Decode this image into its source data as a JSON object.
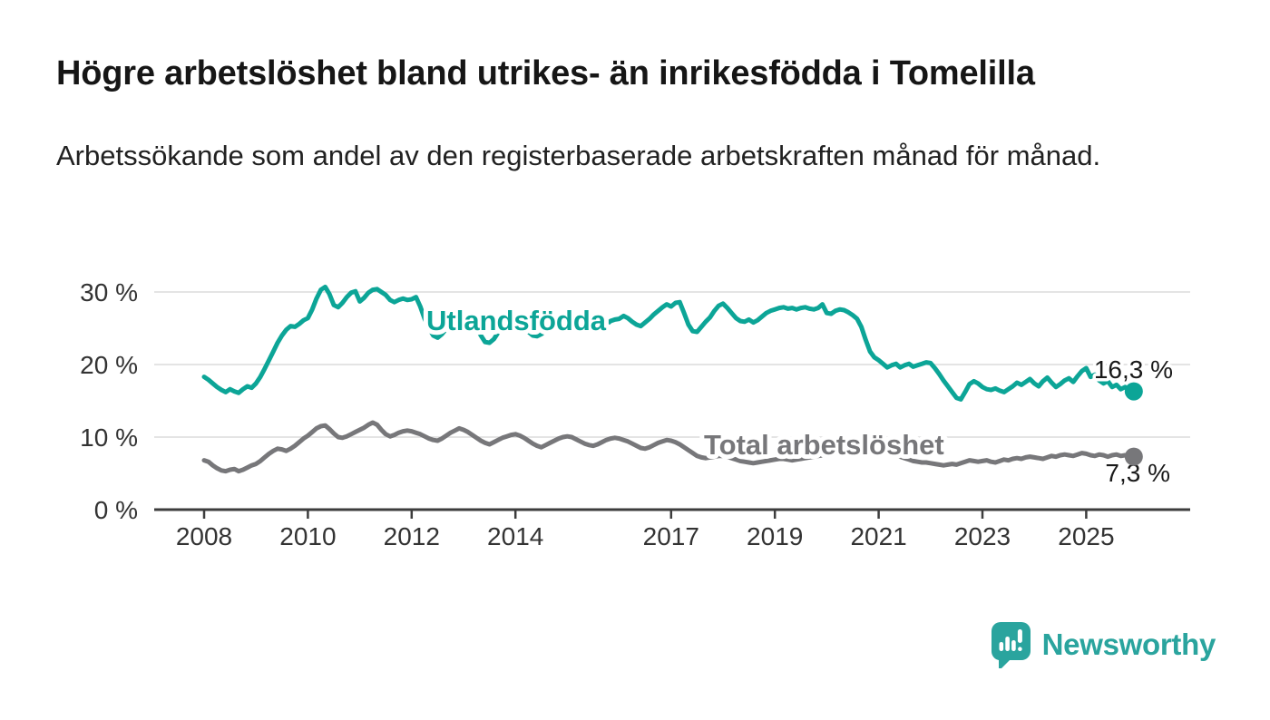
{
  "title": "Högre arbetslöshet bland utrikes- än inrikesfödda i Tomelilla",
  "subtitle": "Arbetssökande som andel av den registerbaserade arbetskraften månad för månad.",
  "branding": {
    "name": "Newsworthy",
    "icon": "speech-bubble-bar-chart-icon",
    "color": "#2AA49E"
  },
  "colors": {
    "foreign_born_line": "#0CA597",
    "total_line": "#77777A",
    "grid": "#DBDBDB",
    "axis": "#3D3D3D",
    "tick_text": "#333333",
    "value_text": "#1A1A1A",
    "background": "#FFFFFF"
  },
  "chart_data": {
    "type": "line",
    "unit": "%",
    "frequency": "monthly",
    "x_start": "2008-01",
    "x_end": "2025-12",
    "ylim": [
      0,
      32
    ],
    "grid": "horizontal",
    "y_ticks": [
      {
        "value": 0,
        "label": "0 %"
      },
      {
        "value": 10,
        "label": "10 %"
      },
      {
        "value": 20,
        "label": "20 %"
      },
      {
        "value": 30,
        "label": "30 %"
      }
    ],
    "x_ticks": [
      {
        "year": 2008,
        "label": "2008"
      },
      {
        "year": 2010,
        "label": "2010"
      },
      {
        "year": 2012,
        "label": "2012"
      },
      {
        "year": 2014,
        "label": "2014"
      },
      {
        "year": 2017,
        "label": "2017"
      },
      {
        "year": 2019,
        "label": "2019"
      },
      {
        "year": 2021,
        "label": "2021"
      },
      {
        "year": 2023,
        "label": "2023"
      },
      {
        "year": 2025,
        "label": "2025"
      }
    ],
    "series": [
      {
        "name": "Utlandsfödda",
        "color": "#0CA597",
        "end_label": "16,3 %",
        "end_value": 16.3,
        "values": [
          18.3,
          17.9,
          17.4,
          16.9,
          16.5,
          16.2,
          16.6,
          16.3,
          16.1,
          16.6,
          17.0,
          16.8,
          17.4,
          18.3,
          19.4,
          20.6,
          21.8,
          23.0,
          24.0,
          24.8,
          25.3,
          25.2,
          25.6,
          26.1,
          26.4,
          27.6,
          29.1,
          30.3,
          30.7,
          29.7,
          28.2,
          27.9,
          28.5,
          29.3,
          29.9,
          30.1,
          28.7,
          29.2,
          29.9,
          30.3,
          30.4,
          30.0,
          29.6,
          28.9,
          28.6,
          28.9,
          29.1,
          28.9,
          29.0,
          29.3,
          28.0,
          26.3,
          25.0,
          24.0,
          23.7,
          24.2,
          24.9,
          25.7,
          26.3,
          26.7,
          26.9,
          26.6,
          26.0,
          25.1,
          24.0,
          23.1,
          23.0,
          23.5,
          24.4,
          25.4,
          26.0,
          26.3,
          26.2,
          25.8,
          25.2,
          24.5,
          24.0,
          23.9,
          24.2,
          24.7,
          25.2,
          25.7,
          26.1,
          26.4,
          26.4,
          26.1,
          25.7,
          25.4,
          25.6,
          25.9,
          25.6,
          25.2,
          25.0,
          25.5,
          26.0,
          26.2,
          26.3,
          26.7,
          26.4,
          25.9,
          25.5,
          25.3,
          25.8,
          26.3,
          26.9,
          27.4,
          27.9,
          28.3,
          28.0,
          28.5,
          28.6,
          27.1,
          25.5,
          24.6,
          24.5,
          25.2,
          25.9,
          26.5,
          27.4,
          28.1,
          28.4,
          27.8,
          27.1,
          26.4,
          26.0,
          25.9,
          26.2,
          25.8,
          26.1,
          26.6,
          27.1,
          27.4,
          27.6,
          27.8,
          27.9,
          27.7,
          27.8,
          27.6,
          27.8,
          27.9,
          27.7,
          27.6,
          27.8,
          28.3,
          27.1,
          27.0,
          27.4,
          27.6,
          27.5,
          27.2,
          26.8,
          26.3,
          25.2,
          23.4,
          21.8,
          21.0,
          20.6,
          20.1,
          19.6,
          19.9,
          20.1,
          19.6,
          19.9,
          20.1,
          19.7,
          19.9,
          20.1,
          20.3,
          20.2,
          19.5,
          18.7,
          17.8,
          17.0,
          16.2,
          15.4,
          15.2,
          16.2,
          17.3,
          17.7,
          17.4,
          16.9,
          16.6,
          16.5,
          16.7,
          16.4,
          16.2,
          16.6,
          17.0,
          17.5,
          17.2,
          17.6,
          18.0,
          17.4,
          17.0,
          17.7,
          18.2,
          17.5,
          16.9,
          17.3,
          17.8,
          18.1,
          17.6,
          18.4,
          19.1,
          19.5,
          18.3,
          18.6,
          17.8,
          17.4,
          17.7,
          16.9,
          17.2,
          16.6,
          16.9,
          16.5,
          16.3
        ]
      },
      {
        "name": "Total arbetslöshet",
        "color": "#77777A",
        "end_label": "7,3 %",
        "end_value": 7.3,
        "values": [
          6.8,
          6.6,
          6.1,
          5.7,
          5.4,
          5.3,
          5.5,
          5.6,
          5.3,
          5.5,
          5.8,
          6.1,
          6.3,
          6.7,
          7.2,
          7.7,
          8.1,
          8.4,
          8.3,
          8.1,
          8.4,
          8.8,
          9.3,
          9.8,
          10.2,
          10.7,
          11.2,
          11.5,
          11.6,
          11.1,
          10.5,
          10.0,
          9.9,
          10.1,
          10.4,
          10.7,
          11.0,
          11.3,
          11.7,
          12.0,
          11.7,
          11.0,
          10.4,
          10.1,
          10.3,
          10.6,
          10.8,
          10.9,
          10.8,
          10.6,
          10.4,
          10.1,
          9.8,
          9.6,
          9.5,
          9.8,
          10.2,
          10.6,
          10.9,
          11.2,
          11.0,
          10.7,
          10.3,
          9.9,
          9.5,
          9.2,
          9.0,
          9.3,
          9.6,
          9.9,
          10.1,
          10.3,
          10.4,
          10.2,
          9.9,
          9.5,
          9.1,
          8.8,
          8.6,
          8.9,
          9.2,
          9.5,
          9.8,
          10.0,
          10.1,
          10.0,
          9.7,
          9.4,
          9.1,
          8.9,
          8.8,
          9.0,
          9.3,
          9.6,
          9.8,
          9.9,
          9.8,
          9.6,
          9.4,
          9.1,
          8.8,
          8.5,
          8.4,
          8.6,
          8.9,
          9.2,
          9.4,
          9.6,
          9.5,
          9.3,
          9.0,
          8.6,
          8.2,
          7.8,
          7.4,
          7.2,
          7.1,
          7.2,
          7.3,
          7.4,
          7.4,
          7.3,
          7.1,
          6.9,
          6.7,
          6.6,
          6.5,
          6.4,
          6.5,
          6.6,
          6.7,
          6.8,
          6.9,
          7.0,
          7.0,
          6.9,
          6.8,
          6.9,
          7.0,
          7.1,
          7.2,
          7.3,
          7.4,
          7.5,
          7.7,
          7.8,
          8.2,
          8.8,
          9.1,
          9.3,
          9.2,
          9.0,
          8.8,
          8.6,
          8.4,
          8.3,
          8.2,
          8.1,
          7.9,
          7.7,
          7.5,
          7.3,
          7.1,
          6.9,
          6.7,
          6.6,
          6.5,
          6.5,
          6.4,
          6.3,
          6.2,
          6.1,
          6.2,
          6.3,
          6.2,
          6.4,
          6.6,
          6.8,
          6.7,
          6.6,
          6.7,
          6.8,
          6.6,
          6.5,
          6.7,
          6.9,
          6.8,
          7.0,
          7.1,
          7.0,
          7.2,
          7.3,
          7.2,
          7.1,
          7.0,
          7.2,
          7.4,
          7.3,
          7.5,
          7.6,
          7.5,
          7.4,
          7.6,
          7.8,
          7.7,
          7.5,
          7.4,
          7.6,
          7.5,
          7.3,
          7.5,
          7.6,
          7.4,
          7.5,
          7.4,
          7.3
        ]
      }
    ]
  }
}
